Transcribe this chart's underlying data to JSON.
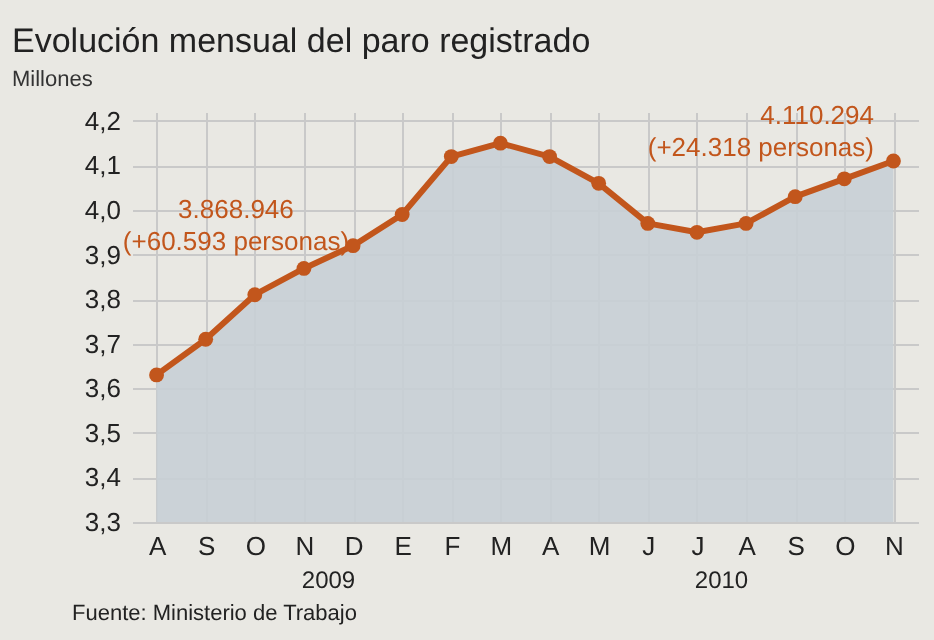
{
  "chart_data": {
    "type": "area",
    "title": "Evolución mensual del paro registrado",
    "ylabel": "Millones",
    "categories": [
      "A",
      "S",
      "O",
      "N",
      "D",
      "E",
      "F",
      "M",
      "A",
      "M",
      "J",
      "J",
      "A",
      "S",
      "O",
      "N"
    ],
    "series": [
      {
        "color": "#c2561c",
        "values": [
          3.63,
          3.71,
          3.81,
          3.869,
          3.92,
          3.99,
          4.12,
          4.15,
          4.12,
          4.06,
          3.97,
          3.95,
          3.97,
          4.03,
          4.07,
          4.11
        ]
      }
    ],
    "ylim": [
      3.3,
      4.22
    ],
    "yticks": [
      {
        "value": 3.3,
        "label": "3,3"
      },
      {
        "value": 3.4,
        "label": "3,4"
      },
      {
        "value": 3.5,
        "label": "3,5"
      },
      {
        "value": 3.6,
        "label": "3,6"
      },
      {
        "value": 3.7,
        "label": "3,7"
      },
      {
        "value": 3.8,
        "label": "3,8"
      },
      {
        "value": 3.9,
        "label": "3,9"
      },
      {
        "value": 4.0,
        "label": "4,0"
      },
      {
        "value": 4.1,
        "label": "4,1"
      },
      {
        "value": 4.2,
        "label": "4,2"
      }
    ],
    "grid": true,
    "marker": "circle",
    "annotations": [
      {
        "text": "3.868.946\n(+60.593 personas)",
        "x": "N",
        "y": 3.869
      },
      "4.110.294\n(+24.318 personas)",
      "2009",
      "2010",
      "Fuente: Ministerio de Trabajo"
    ]
  }
}
